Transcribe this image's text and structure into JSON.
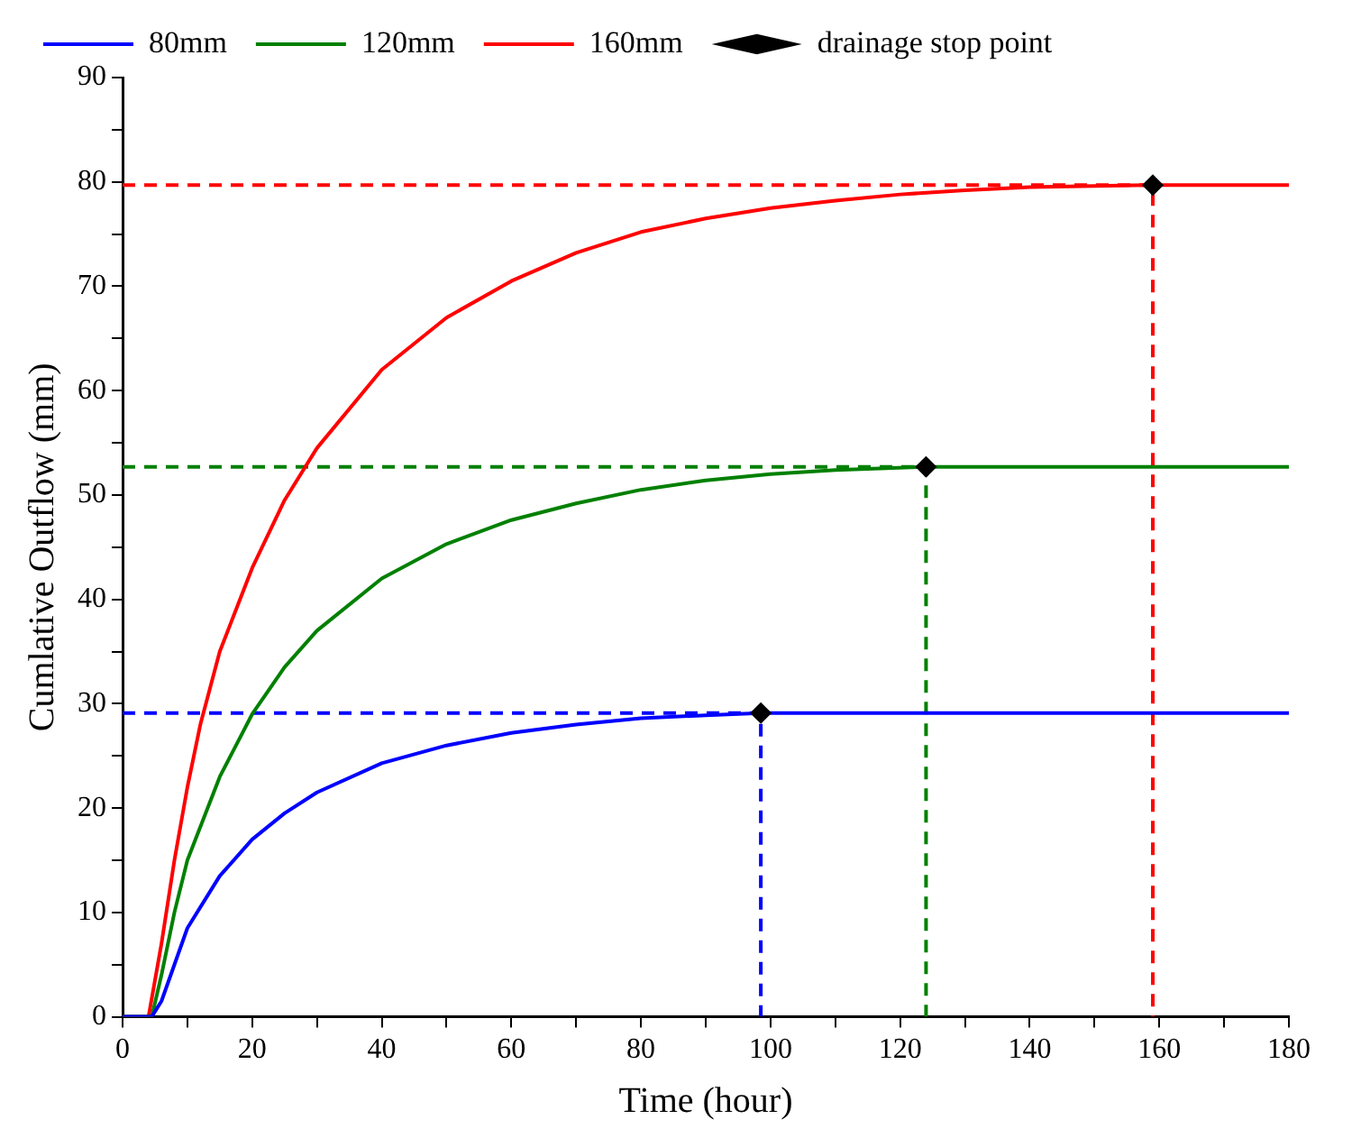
{
  "chart_data": {
    "type": "line",
    "xlabel": "Time (hour)",
    "ylabel": "Cumlative Outflow (mm)",
    "xlim": [
      0,
      180
    ],
    "ylim": [
      0,
      90
    ],
    "xticks": [
      0,
      {
        "value": 10,
        "label": null
      },
      20,
      {
        "value": 30,
        "label": null
      },
      40,
      {
        "value": 50,
        "label": null
      },
      60,
      {
        "value": 70,
        "label": null
      },
      80,
      {
        "value": 90,
        "label": null
      },
      100,
      {
        "value": 110,
        "label": null
      },
      120,
      {
        "value": 130,
        "label": null
      },
      140,
      {
        "value": 150,
        "label": null
      },
      160,
      {
        "value": 170,
        "label": null
      },
      180
    ],
    "yticks": [
      0,
      {
        "value": 5,
        "label": null
      },
      10,
      {
        "value": 15,
        "label": null
      },
      20,
      {
        "value": 25,
        "label": null
      },
      30,
      {
        "value": 35,
        "label": null
      },
      40,
      {
        "value": 45,
        "label": null
      },
      50,
      {
        "value": 55,
        "label": null
      },
      60,
      {
        "value": 65,
        "label": null
      },
      70,
      {
        "value": 75,
        "label": null
      },
      80,
      {
        "value": 85,
        "label": null
      },
      90
    ],
    "grid": false,
    "legend": "top",
    "marker": "none",
    "line_style": "solid",
    "series": [
      {
        "name": "80mm",
        "color": "#0000ff",
        "x": [
          0,
          4.5,
          6,
          8,
          10,
          15,
          20,
          25,
          30,
          40,
          50,
          60,
          70,
          80,
          90,
          98.5,
          180
        ],
        "values": [
          0,
          0,
          1.5,
          5,
          8.5,
          13.5,
          17,
          19.5,
          21.5,
          24.3,
          26,
          27.2,
          28,
          28.6,
          28.9,
          29.1,
          29.1
        ]
      },
      {
        "name": "120mm",
        "color": "#008000",
        "x": [
          0,
          4.5,
          6,
          8,
          10,
          15,
          20,
          25,
          30,
          40,
          50,
          60,
          70,
          80,
          90,
          100,
          110,
          124,
          180
        ],
        "values": [
          0,
          0,
          4,
          10,
          15,
          23,
          29,
          33.5,
          37,
          42,
          45.3,
          47.6,
          49.2,
          50.5,
          51.4,
          52,
          52.4,
          52.7,
          52.7
        ]
      },
      {
        "name": "160mm",
        "color": "#ff0000",
        "x": [
          0,
          4,
          6,
          8,
          10,
          12,
          15,
          20,
          25,
          30,
          40,
          50,
          60,
          70,
          80,
          90,
          100,
          110,
          120,
          130,
          140,
          159,
          180
        ],
        "values": [
          0,
          0,
          7,
          15,
          22,
          28,
          35,
          43,
          49.5,
          54.5,
          62,
          67,
          70.5,
          73.2,
          75.2,
          76.5,
          77.5,
          78.2,
          78.8,
          79.2,
          79.5,
          79.7,
          79.7
        ]
      },
      {
        "name": "drainage stop point",
        "type": "scatter",
        "marker": "diamond",
        "color": "#000000",
        "x": [
          98.5,
          124,
          159
        ],
        "values": [
          29.1,
          52.7,
          79.7
        ]
      },
      {
        "color": "#0000ff",
        "line_style": "dashed",
        "x": [
          0,
          98.5,
          98.5
        ],
        "values": [
          29.1,
          29.1,
          0
        ]
      },
      {
        "color": "#008000",
        "line_style": "dashed",
        "x": [
          0,
          124,
          124
        ],
        "values": [
          52.7,
          52.7,
          0
        ]
      },
      {
        "color": "#ff0000",
        "line_style": "dashed",
        "x": [
          0,
          159,
          159
        ],
        "values": [
          79.7,
          79.7,
          0
        ]
      }
    ]
  }
}
